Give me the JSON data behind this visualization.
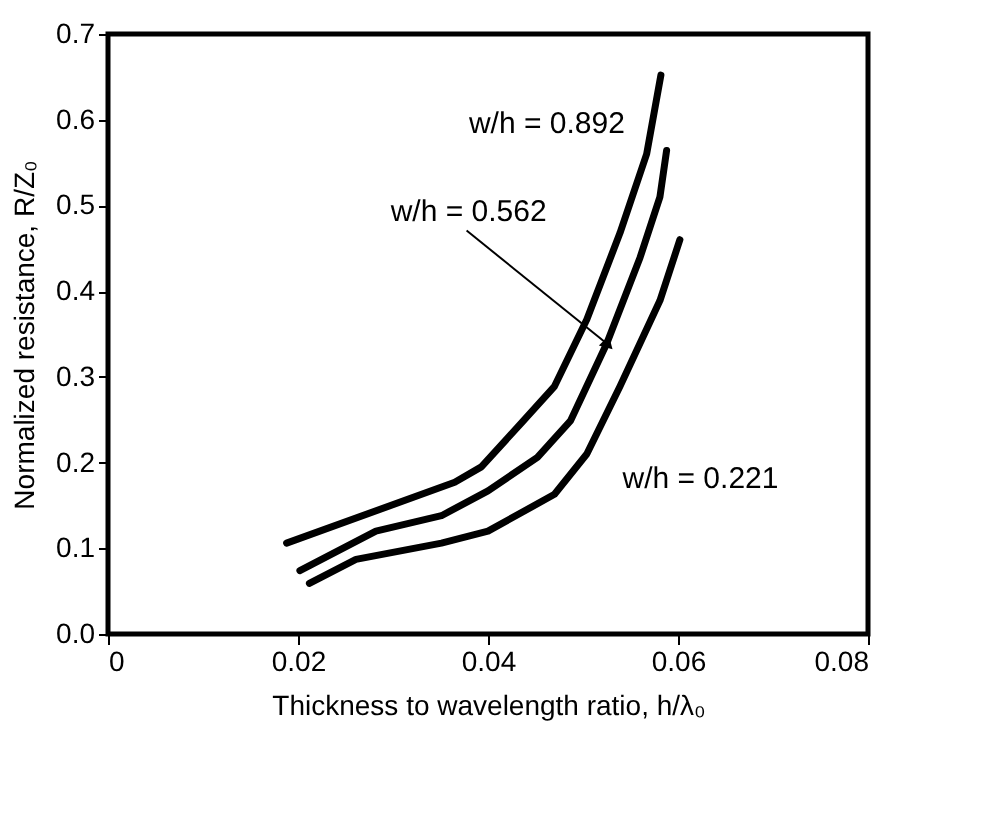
{
  "chart_data": {
    "type": "line",
    "xlabel": "Thickness to wavelength ratio, h/λ₀",
    "ylabel": "Normalized resistance, R/Z₀",
    "xlim": [
      0,
      0.08
    ],
    "xticks": [
      {
        "value": 0,
        "label": "0"
      },
      0.02,
      0.04,
      0.06,
      0.08
    ],
    "ylim": [
      0,
      0.7
    ],
    "yticks": [
      {
        "value": 0,
        "label": "0.0"
      },
      0.1,
      0.2,
      0.3,
      0.4,
      0.5,
      0.6,
      0.7
    ],
    "grid": false,
    "marker": "none",
    "line_style": "solid",
    "series": [
      {
        "name": "w/h = 0.892",
        "color": "#000000",
        "x": [
          0.0188,
          0.0365,
          0.0393,
          0.0435,
          0.047,
          0.0504,
          0.0539,
          0.0567,
          0.0582
        ],
        "values": [
          0.106,
          0.177,
          0.195,
          0.246,
          0.289,
          0.367,
          0.468,
          0.56,
          0.652
        ]
      },
      {
        "name": "w/h = 0.562",
        "color": "#000000",
        "x": [
          0.0202,
          0.0282,
          0.0351,
          0.04,
          0.0452,
          0.0487,
          0.0525,
          0.056,
          0.0581,
          0.0588
        ],
        "values": [
          0.074,
          0.12,
          0.138,
          0.167,
          0.206,
          0.249,
          0.339,
          0.439,
          0.51,
          0.564
        ]
      },
      {
        "name": "w/h = 0.221",
        "color": "#000000",
        "x": [
          0.0212,
          0.0261,
          0.0351,
          0.04,
          0.047,
          0.0504,
          0.0539,
          0.0581,
          0.0602
        ],
        "values": [
          0.059,
          0.087,
          0.106,
          0.12,
          0.163,
          0.21,
          0.289,
          0.389,
          0.46
        ]
      }
    ]
  }
}
